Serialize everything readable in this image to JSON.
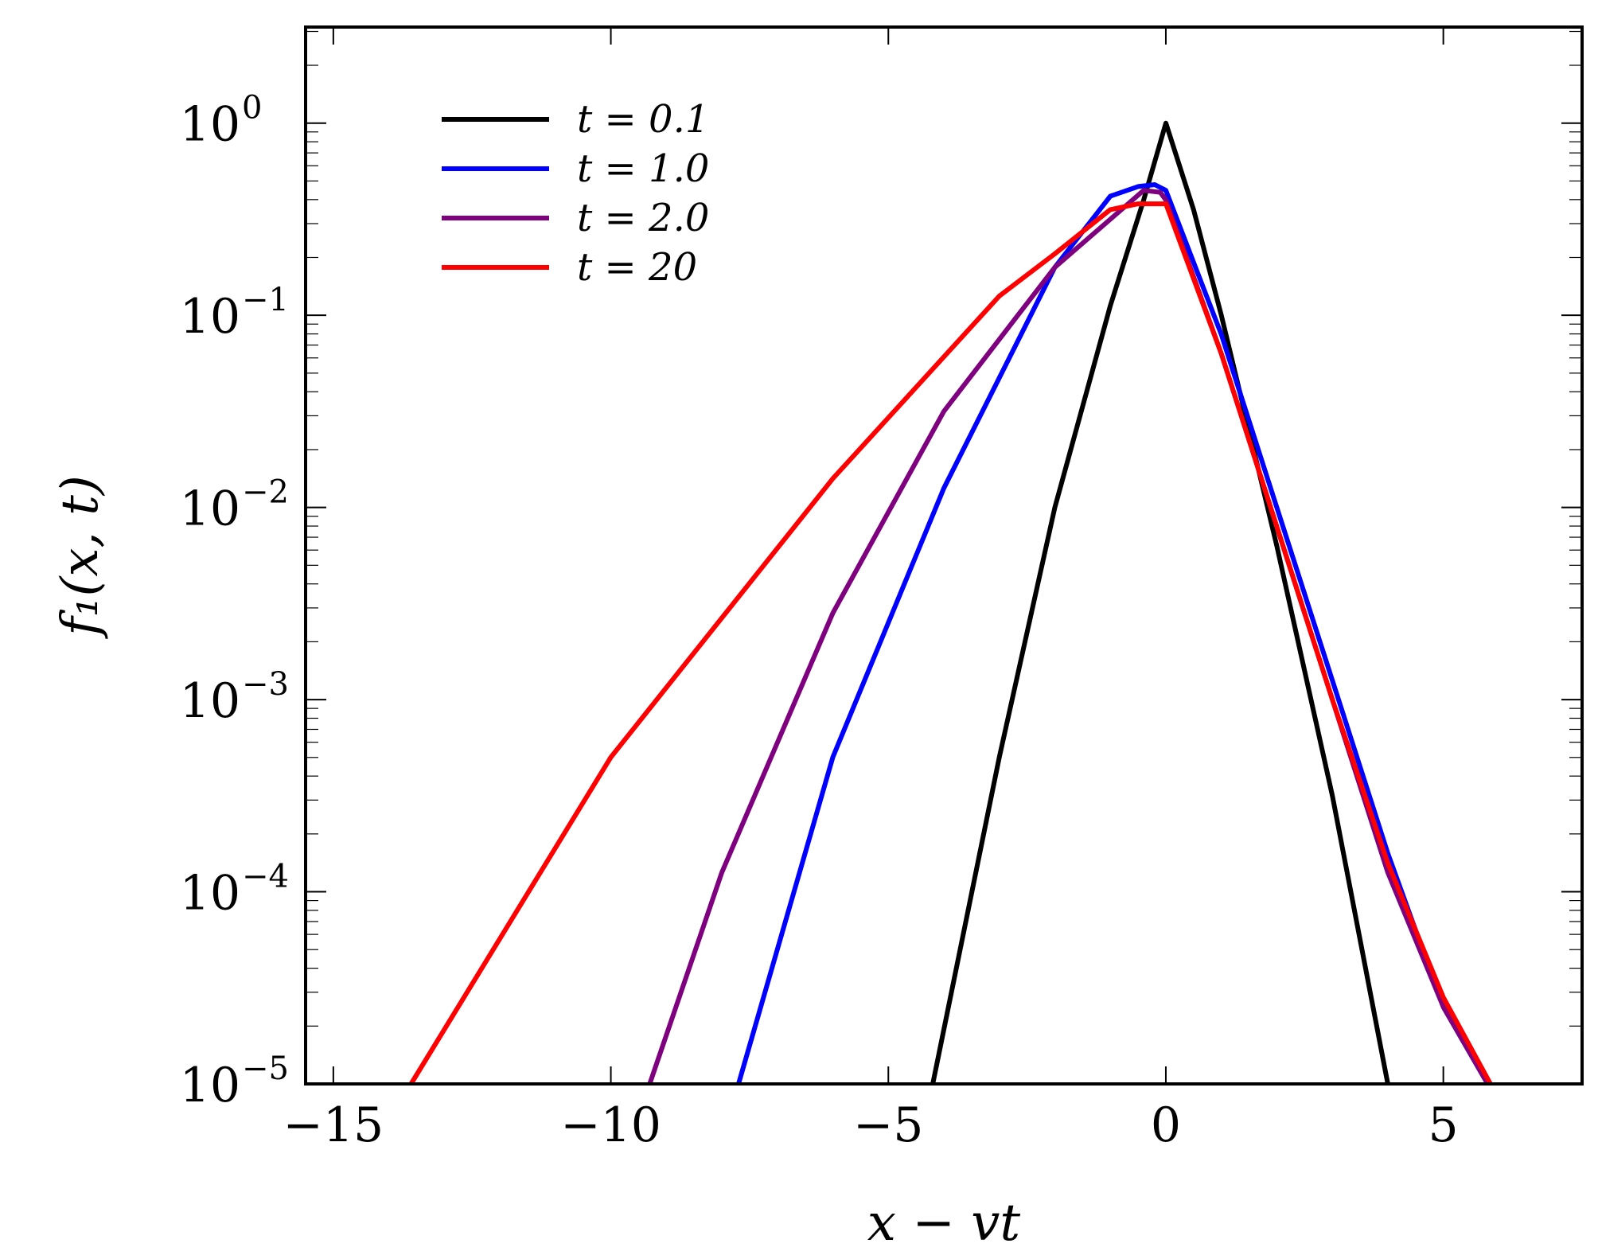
{
  "chart_data": {
    "type": "line",
    "xlabel": "x − vt",
    "ylabel": "f₁(x, t)",
    "xlim": [
      -15.5,
      7.5
    ],
    "ylim_log10": [
      -5,
      0.5
    ],
    "yscale": "log",
    "grid": false,
    "legend_position": "top-left",
    "x_ticks": [
      {
        "value": -15,
        "label": "−15"
      },
      {
        "value": -10,
        "label": "−10"
      },
      {
        "value": -5,
        "label": "−5"
      },
      {
        "value": 0,
        "label": "0"
      },
      {
        "value": 5,
        "label": "5"
      }
    ],
    "y_ticks": [
      {
        "exp": 0,
        "base": "10",
        "sup": "0"
      },
      {
        "exp": -1,
        "base": "10",
        "sup": "−1"
      },
      {
        "exp": -2,
        "base": "10",
        "sup": "−2"
      },
      {
        "exp": -3,
        "base": "10",
        "sup": "−3"
      },
      {
        "exp": -4,
        "base": "10",
        "sup": "−4"
      },
      {
        "exp": -5,
        "base": "10",
        "sup": "−5"
      }
    ],
    "series": [
      {
        "name": "t = 0.1",
        "color": "#000000",
        "points": [
          [
            -4.2,
            -5.0
          ],
          [
            -3.0,
            -3.3
          ],
          [
            -2.0,
            -2.0
          ],
          [
            -1.0,
            -0.95
          ],
          [
            -0.4,
            -0.4
          ],
          [
            0.0,
            0.0
          ],
          [
            0.5,
            -0.45
          ],
          [
            1.0,
            -1.0
          ],
          [
            2.0,
            -2.2
          ],
          [
            3.0,
            -3.5
          ],
          [
            4.0,
            -5.0
          ]
        ]
      },
      {
        "name": "t = 1.0",
        "color": "#0000ff",
        "points": [
          [
            -7.7,
            -5.0
          ],
          [
            -6.0,
            -3.3
          ],
          [
            -4.0,
            -1.9
          ],
          [
            -2.0,
            -0.75
          ],
          [
            -1.0,
            -0.38
          ],
          [
            -0.5,
            -0.33
          ],
          [
            -0.2,
            -0.32
          ],
          [
            0.0,
            -0.35
          ],
          [
            1.0,
            -1.1
          ],
          [
            2.0,
            -2.0
          ],
          [
            3.0,
            -2.9
          ],
          [
            4.0,
            -3.8
          ],
          [
            5.0,
            -4.6
          ],
          [
            5.8,
            -5.0
          ]
        ]
      },
      {
        "name": "t = 2.0",
        "color": "#7f007f",
        "points": [
          [
            -9.3,
            -5.0
          ],
          [
            -8.0,
            -3.9
          ],
          [
            -6.0,
            -2.55
          ],
          [
            -4.0,
            -1.5
          ],
          [
            -2.0,
            -0.75
          ],
          [
            -1.0,
            -0.5
          ],
          [
            -0.4,
            -0.35
          ],
          [
            -0.1,
            -0.36
          ],
          [
            0.0,
            -0.4
          ],
          [
            1.0,
            -1.2
          ],
          [
            2.0,
            -2.1
          ],
          [
            3.0,
            -3.0
          ],
          [
            4.0,
            -3.9
          ],
          [
            5.0,
            -4.6
          ],
          [
            5.8,
            -5.0
          ]
        ]
      },
      {
        "name": "t = 20",
        "color": "#ff0000",
        "points": [
          [
            -13.6,
            -5.0
          ],
          [
            -10.0,
            -3.3
          ],
          [
            -6.0,
            -1.85
          ],
          [
            -3.0,
            -0.9
          ],
          [
            -2.0,
            -0.68
          ],
          [
            -1.0,
            -0.45
          ],
          [
            -0.5,
            -0.42
          ],
          [
            0.0,
            -0.42
          ],
          [
            1.0,
            -1.2
          ],
          [
            2.0,
            -2.1
          ],
          [
            3.0,
            -3.0
          ],
          [
            4.0,
            -3.85
          ],
          [
            5.0,
            -4.55
          ],
          [
            5.85,
            -5.0
          ]
        ]
      }
    ]
  }
}
